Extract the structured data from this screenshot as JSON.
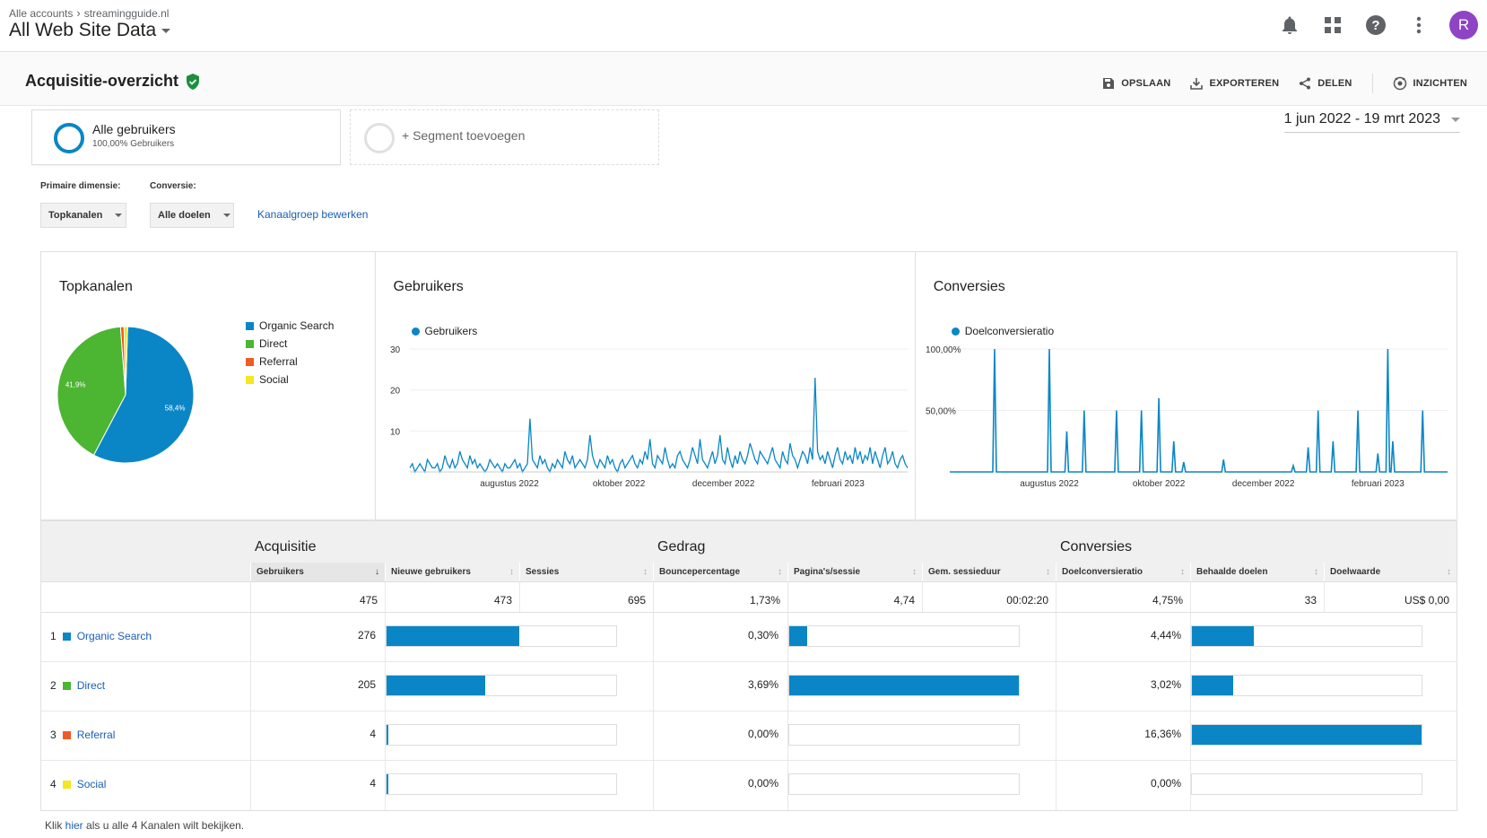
{
  "topbar": {
    "crumb_account": "Alle accounts",
    "crumb_property": "streamingguide.nl",
    "view_title": "All Web Site Data",
    "avatar_letter": "R"
  },
  "page": {
    "title": "Acquisitie-overzicht",
    "actions": {
      "save": "OPSLAAN",
      "export": "EXPORTEREN",
      "share": "DELEN",
      "insights": "INZICHTEN"
    }
  },
  "segments": {
    "active_name": "Alle gebruikers",
    "active_sub": "100,00% Gebruikers",
    "add_label": "+ Segment toevoegen"
  },
  "date_range": "1 jun 2022 - 19 mrt 2023",
  "controls": {
    "primary_dimension_label": "Primaire dimensie:",
    "primary_dimension_value": "Topkanalen",
    "conversion_label": "Conversie:",
    "conversion_value": "Alle doelen",
    "edit_link": "Kanaalgroep bewerken"
  },
  "colors": {
    "organic": "#0a86c6",
    "direct": "#4cb531",
    "referral": "#f05a23",
    "social": "#f5e71d",
    "accent": "#0a86c6"
  },
  "chart_data": [
    {
      "type": "pie",
      "title": "Topkanalen",
      "slices": [
        {
          "name": "Organic Search",
          "value": 58.4,
          "label": "58,4%"
        },
        {
          "name": "Direct",
          "value": 41.9,
          "label": "41,9%"
        },
        {
          "name": "Referral",
          "value": 0.85
        },
        {
          "name": "Social",
          "value": 0.85
        }
      ]
    },
    {
      "type": "line",
      "title": "Gebruikers",
      "series_name": "Gebruikers",
      "yticks": [
        "10",
        "20",
        "30"
      ],
      "ylim": [
        0,
        30
      ],
      "xticks": [
        "augustus 2022",
        "oktober 2022",
        "december 2022",
        "februari 2023"
      ],
      "values": [
        1,
        2,
        0,
        1,
        2,
        1,
        0,
        3,
        2,
        1,
        1,
        2,
        0,
        1,
        4,
        2,
        1,
        3,
        1,
        2,
        5,
        3,
        2,
        1,
        4,
        2,
        3,
        1,
        2,
        1,
        0,
        1,
        3,
        2,
        1,
        2,
        1,
        0,
        2,
        1,
        1,
        2,
        3,
        1,
        2,
        0,
        1,
        2,
        13,
        3,
        2,
        1,
        4,
        2,
        3,
        1,
        0,
        2,
        1,
        3,
        2,
        1,
        5,
        3,
        2,
        4,
        1,
        2,
        3,
        2,
        1,
        3,
        9,
        4,
        2,
        1,
        3,
        2,
        1,
        4,
        2,
        3,
        1,
        0,
        2,
        3,
        1,
        2,
        3,
        4,
        2,
        1,
        3,
        2,
        5,
        3,
        8,
        2,
        1,
        4,
        3,
        2,
        6,
        3,
        1,
        2,
        1,
        4,
        5,
        3,
        2,
        1,
        3,
        6,
        4,
        2,
        8,
        3,
        2,
        1,
        3,
        5,
        2,
        4,
        9,
        3,
        2,
        6,
        3,
        1,
        4,
        2,
        5,
        3,
        2,
        4,
        7,
        5,
        3,
        2,
        5,
        4,
        3,
        2,
        4,
        6,
        3,
        2,
        1,
        5,
        3,
        2,
        7,
        4,
        3,
        1,
        3,
        5,
        4,
        2,
        6,
        3,
        23,
        5,
        3,
        4,
        2,
        5,
        3,
        1,
        4,
        6,
        3,
        2,
        5,
        3,
        4,
        2,
        6,
        3,
        5,
        2,
        4,
        3,
        6,
        2,
        5,
        3,
        1,
        4,
        6,
        2,
        3,
        5,
        2,
        1,
        3,
        4,
        2,
        1
      ],
      "xtick_positions": [
        0.2,
        0.42,
        0.63,
        0.86
      ]
    },
    {
      "type": "line",
      "title": "Conversies",
      "series_name": "Doelconversieratio",
      "yticks": [
        "50,00%",
        "100,00%"
      ],
      "ylim": [
        0,
        100
      ],
      "xticks": [
        "augustus 2022",
        "oktober 2022",
        "december 2022",
        "februari 2023"
      ],
      "spikes": [
        [
          0.09,
          100
        ],
        [
          0.2,
          100
        ],
        [
          0.235,
          33
        ],
        [
          0.27,
          50
        ],
        [
          0.335,
          50
        ],
        [
          0.385,
          50
        ],
        [
          0.42,
          60
        ],
        [
          0.45,
          25
        ],
        [
          0.47,
          8
        ],
        [
          0.55,
          10
        ],
        [
          0.69,
          5
        ],
        [
          0.72,
          20
        ],
        [
          0.74,
          50
        ],
        [
          0.77,
          25
        ],
        [
          0.82,
          50
        ],
        [
          0.86,
          15
        ],
        [
          0.88,
          100
        ],
        [
          0.89,
          25
        ],
        [
          0.95,
          50
        ]
      ],
      "xtick_positions": [
        0.2,
        0.42,
        0.63,
        0.86
      ]
    }
  ],
  "table": {
    "groups": [
      "Acquisitie",
      "Gedrag",
      "Conversies"
    ],
    "columns": [
      "Gebruikers",
      "Nieuwe gebruikers",
      "Sessies",
      "Bouncepercentage",
      "Pagina's/sessie",
      "Gem. sessieduur",
      "Doelconversieratio",
      "Behaalde doelen",
      "Doelwaarde"
    ],
    "totals": [
      "475",
      "473",
      "695",
      "1,73%",
      "4,74",
      "00:02:20",
      "4,75%",
      "33",
      "US$ 0,00"
    ],
    "rows": [
      {
        "rank": "1",
        "channel": "Organic Search",
        "color": "#0a86c6",
        "users": "276",
        "sessions_share": 0.58,
        "bounce": "0,30%",
        "bounce_share": 0.08,
        "conv": "4,44%",
        "conv_share": 0.27
      },
      {
        "rank": "2",
        "channel": "Direct",
        "color": "#4cb531",
        "users": "205",
        "sessions_share": 0.43,
        "bounce": "3,69%",
        "bounce_share": 1.0,
        "conv": "3,02%",
        "conv_share": 0.18
      },
      {
        "rank": "3",
        "channel": "Referral",
        "color": "#f05a23",
        "users": "4",
        "sessions_share": 0.006,
        "bounce": "0,00%",
        "bounce_share": 0.0,
        "conv": "16,36%",
        "conv_share": 1.0
      },
      {
        "rank": "4",
        "channel": "Social",
        "color": "#f5e71d",
        "users": "4",
        "sessions_share": 0.006,
        "bounce": "0,00%",
        "bounce_share": 0.0,
        "conv": "0,00%",
        "conv_share": 0.0
      }
    ]
  },
  "footer": {
    "prefix": "Klik ",
    "link": "hier",
    "suffix": " als u alle 4 Kanalen wilt bekijken."
  }
}
